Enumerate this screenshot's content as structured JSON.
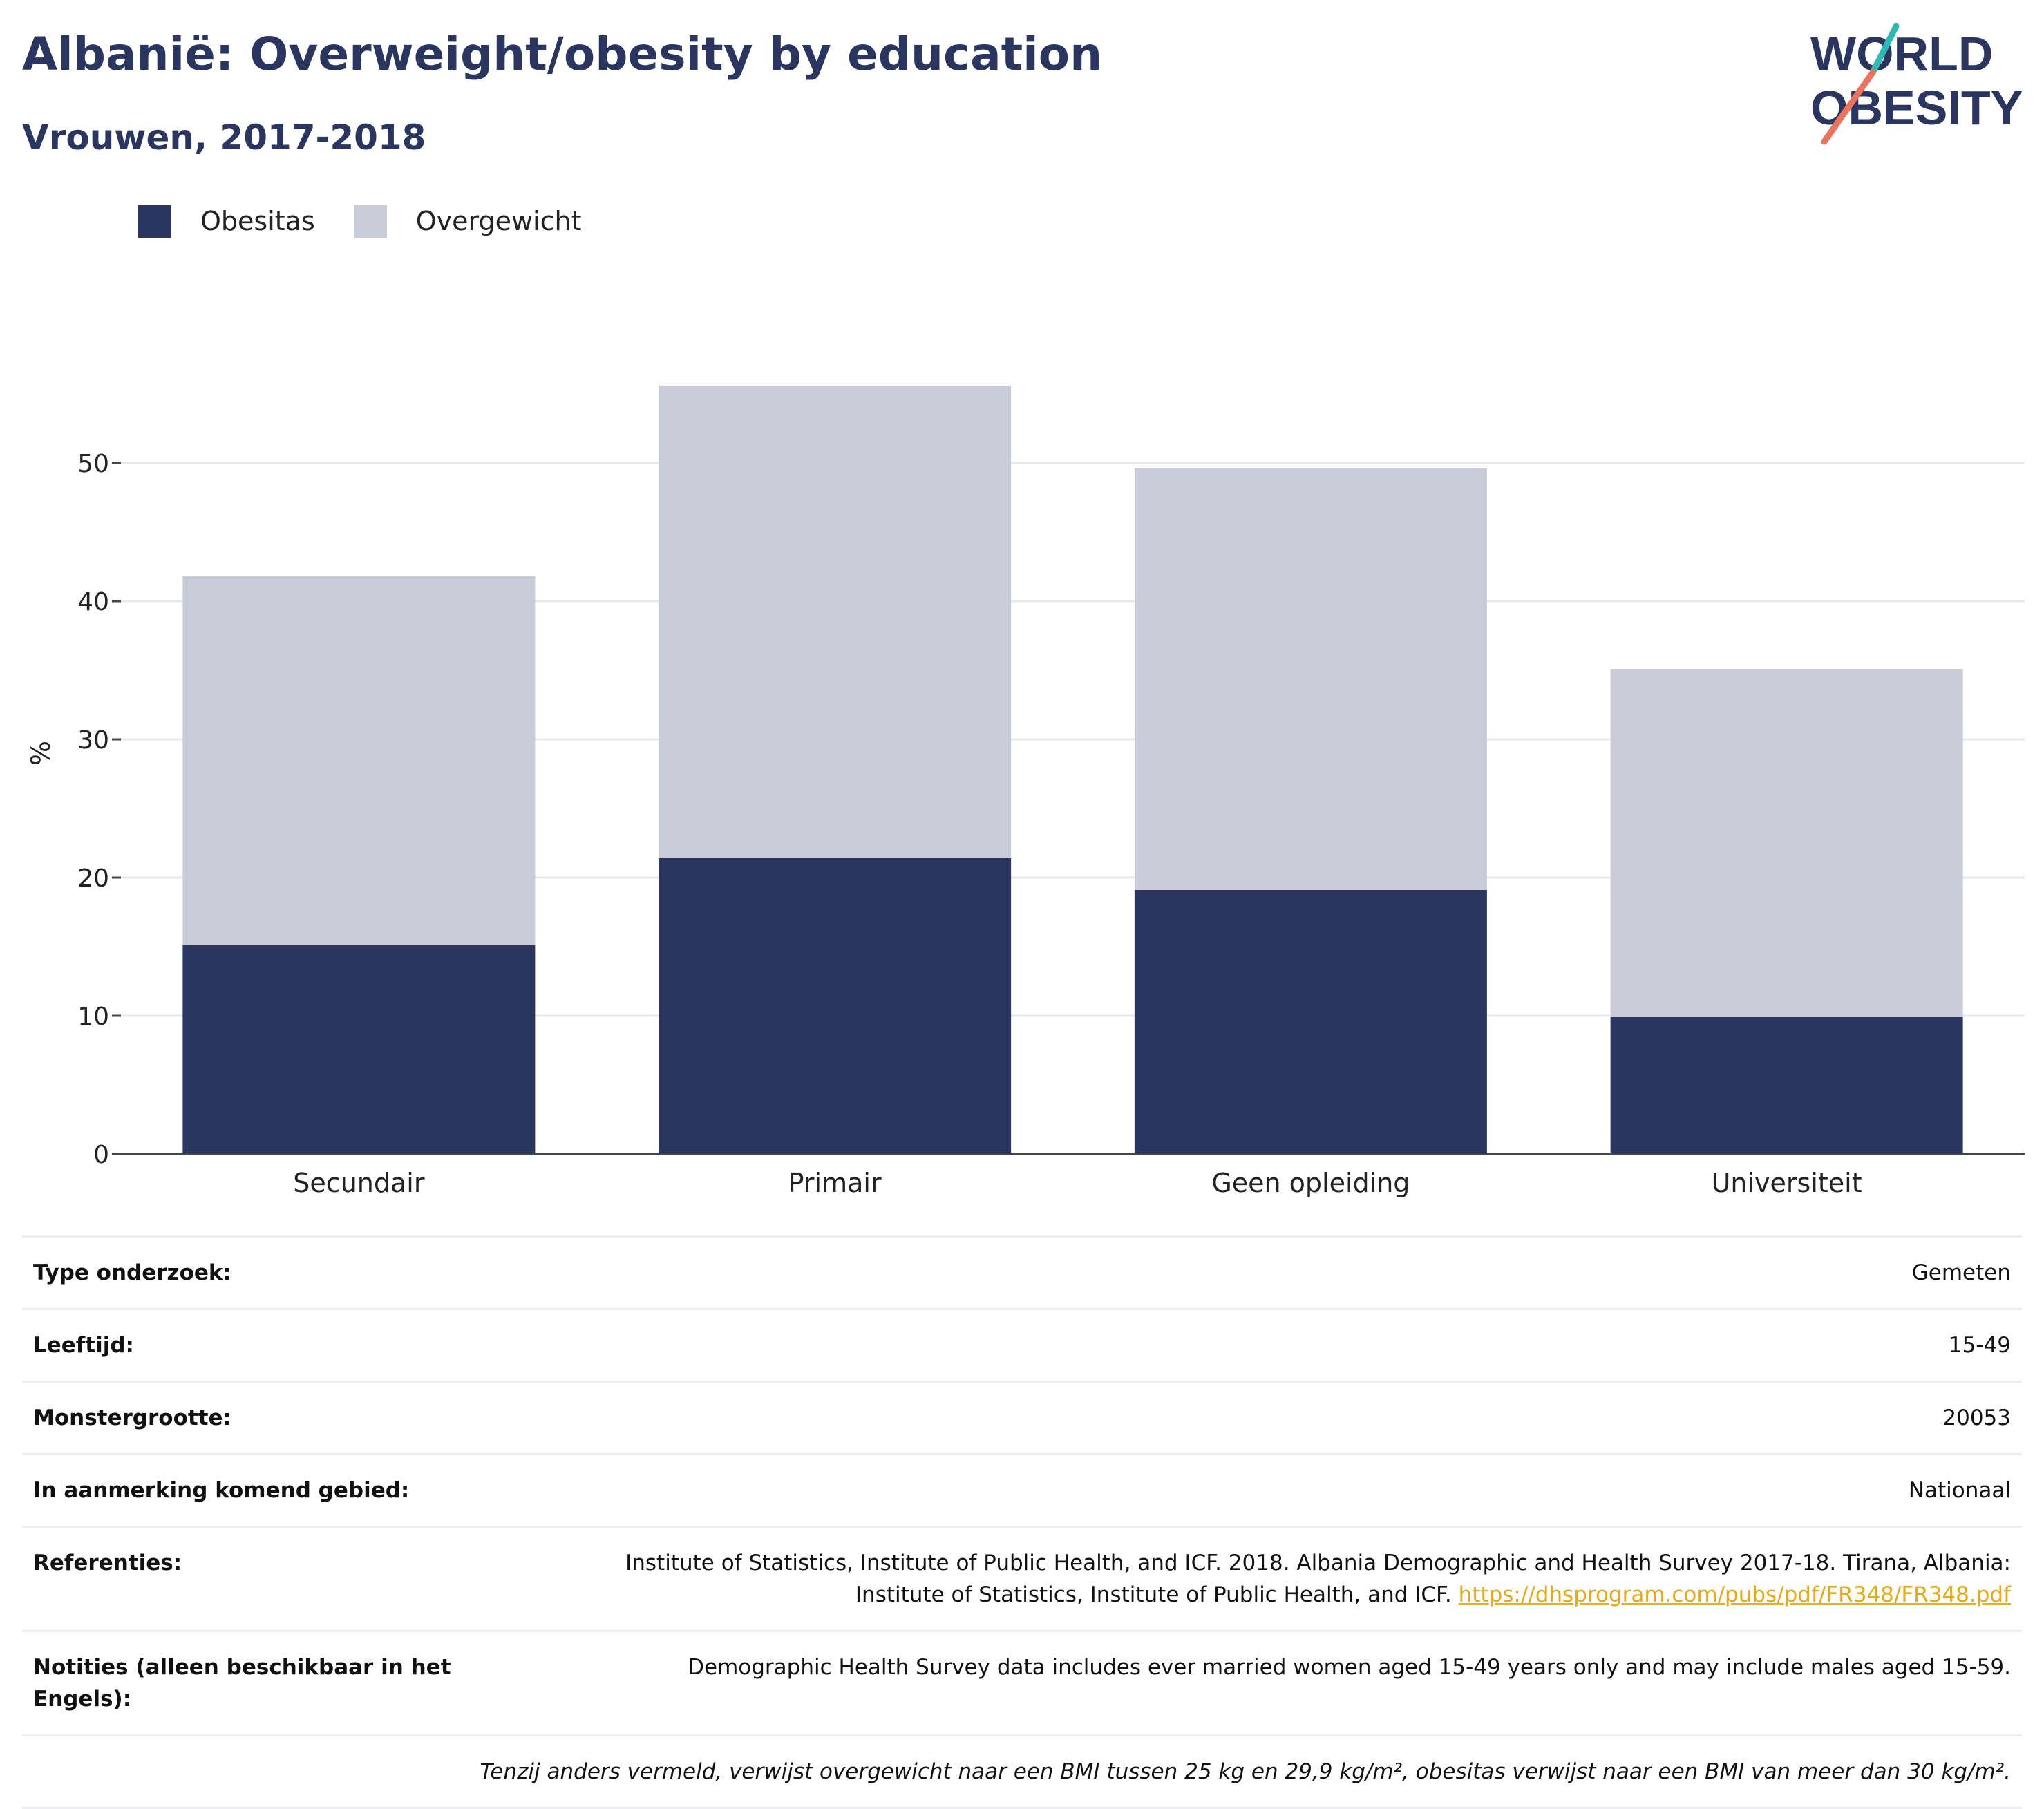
{
  "header": {
    "title": "Albanië: Overweight/obesity by education",
    "subtitle": "Vrouwen, 2017-2018"
  },
  "logo": {
    "line1": "WORLD",
    "line2": "OBESITY"
  },
  "colors": {
    "obesity": "#2b3660",
    "overweight": "#c9ccd8",
    "accent_teal": "#2fb9b5",
    "accent_coral": "#e8735f",
    "link": "#e8a817"
  },
  "chart_data": {
    "type": "bar",
    "stacked": true,
    "categories": [
      "Secundair",
      "Primair",
      "Geen opleiding",
      "Universiteit"
    ],
    "series": [
      {
        "name": "Obesitas",
        "values": [
          15.1,
          21.4,
          19.1,
          9.9
        ]
      },
      {
        "name": "Overgewicht",
        "values": [
          26.7,
          34.2,
          30.5,
          25.2
        ]
      }
    ],
    "xlabel": "",
    "ylabel": "%",
    "ylim": [
      0,
      58
    ],
    "yticks": [
      0,
      10,
      20,
      30,
      40,
      50
    ],
    "grid": true,
    "legend_position": "top-left"
  },
  "info": {
    "rows": [
      {
        "label": "Type onderzoek:",
        "value": "Gemeten"
      },
      {
        "label": "Leeftijd:",
        "value": "15-49"
      },
      {
        "label": "Monstergrootte:",
        "value": "20053"
      },
      {
        "label": "In aanmerking komend gebied:",
        "value": "Nationaal"
      }
    ],
    "references_label": "Referenties:",
    "references_line1": "Institute of Statistics, Institute of Public Health, and ICF. 2018. Albania Demographic and Health Survey 2017-18. Tirana, Albania:",
    "references_line2": "Institute of Statistics, Institute of Public Health, and ICF.",
    "references_link": "https://dhsprogram.com/pubs/pdf/FR348/FR348.pdf",
    "notes_label": "Notities (alleen beschikbaar in het Engels):",
    "notes_value": "Demographic Health Survey data includes ever married women aged 15-49 years only and may include males aged 15-59.",
    "footnote": "Tenzij anders vermeld, verwijst overgewicht naar een BMI tussen 25 kg en 29,9 kg/m², obesitas verwijst naar een BMI van meer dan 30 kg/m²."
  }
}
